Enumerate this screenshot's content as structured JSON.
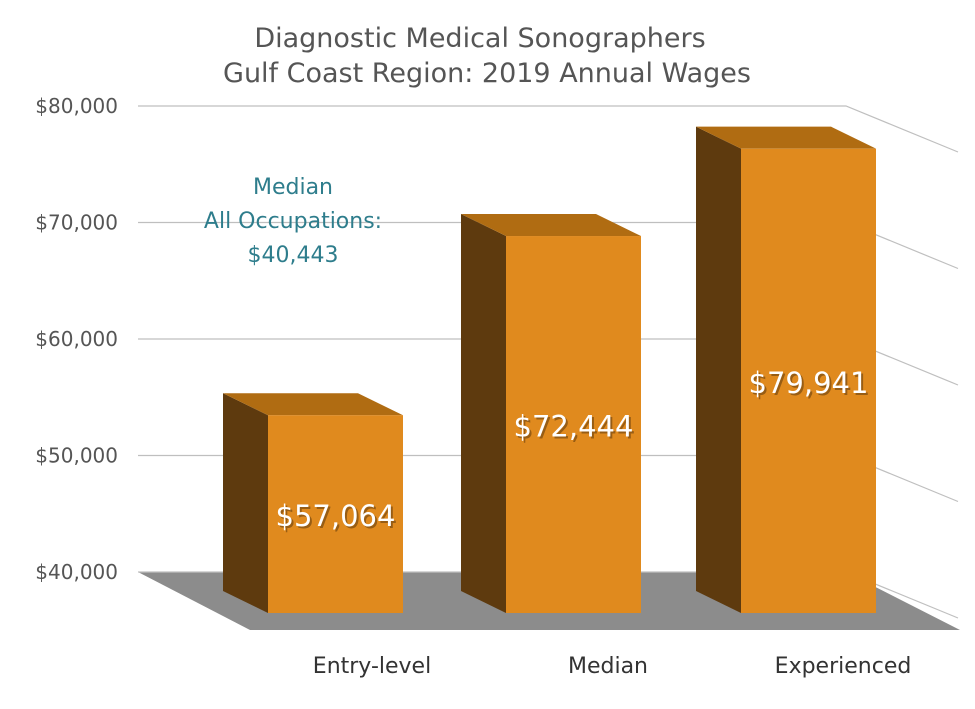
{
  "chart_data": {
    "type": "bar",
    "title": "Diagnostic Medical Sonographers",
    "subtitle": "Gulf Coast Region: 2019 Annual Wages",
    "categories": [
      "Entry-level",
      "Median",
      "Experienced"
    ],
    "values": [
      57064,
      72444,
      79941
    ],
    "value_labels": [
      "$57,064",
      "$72,444",
      "$79,941"
    ],
    "ylim": [
      40000,
      80000
    ],
    "y_ticks": [
      40000,
      50000,
      60000,
      70000,
      80000
    ],
    "y_tick_labels": [
      "$40,000",
      "$50,000",
      "$60,000",
      "$70,000",
      "$80,000"
    ],
    "grid": true,
    "style": "3d",
    "annotation": {
      "lines": [
        "Median",
        "All Occupations:",
        "$40,443"
      ],
      "value": 40443
    },
    "colors": {
      "bar_front": "#e08a1e",
      "bar_side": "#5e3a0e",
      "bar_top": "#b06c12",
      "floor": "#8c8c8c",
      "annotation": "#2e7d8c"
    }
  }
}
